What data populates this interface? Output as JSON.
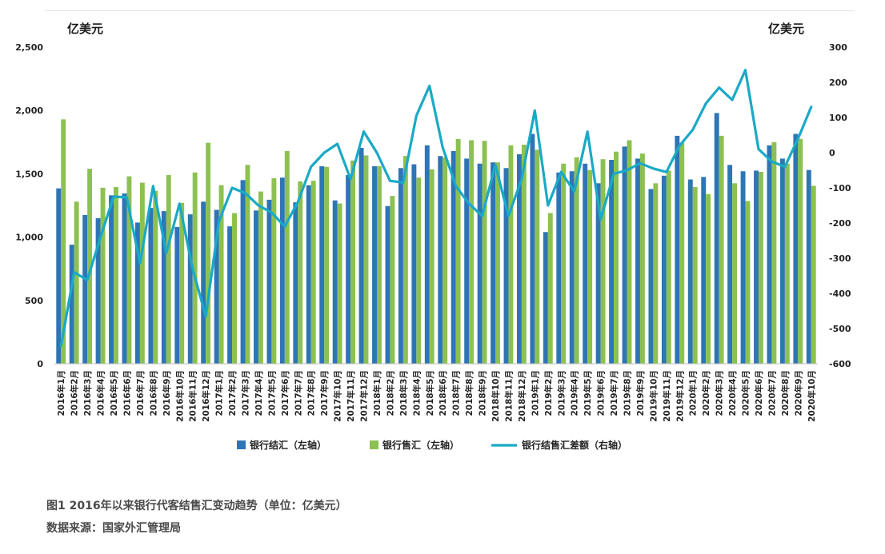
{
  "caption": {
    "title": "图1 2016年以来银行代客结售汇变动趋势（单位：亿美元）",
    "source": "数据来源：国家外汇管理局"
  },
  "chart_data": {
    "type": "bar",
    "title": "",
    "left_unit": "亿美元",
    "right_unit": "亿美元",
    "colors": {
      "settlement": "#2e75b6",
      "sale": "#8cc152",
      "balance": "#1aa9c6"
    },
    "y_left": {
      "min": 0,
      "max": 2500,
      "ticks": [
        0,
        500,
        1000,
        1500,
        2000,
        2500
      ],
      "tick_labels": [
        "0",
        "500",
        "1,000",
        "1,500",
        "2,000",
        "2,500"
      ]
    },
    "y_right": {
      "min": -600,
      "max": 300,
      "ticks": [
        -600,
        -500,
        -400,
        -300,
        -200,
        -100,
        0,
        100,
        200,
        300
      ],
      "tick_labels": [
        "-600",
        "-500",
        "-400",
        "-300",
        "-200",
        "-100",
        "0",
        "100",
        "200",
        "300"
      ]
    },
    "categories": [
      "2016年1月",
      "2016年2月",
      "2016年3月",
      "2016年4月",
      "2016年5月",
      "2016年6月",
      "2016年7月",
      "2016年8月",
      "2016年9月",
      "2016年10月",
      "2016年11月",
      "2016年12月",
      "2017年1月",
      "2017年2月",
      "2017年3月",
      "2017年4月",
      "2017年5月",
      "2017年6月",
      "2017年7月",
      "2017年8月",
      "2017年9月",
      "2017年10月",
      "2017年11月",
      "2017年12月",
      "2018年1月",
      "2018年2月",
      "2018年3月",
      "2018年4月",
      "2018年5月",
      "2018年6月",
      "2018年7月",
      "2018年8月",
      "2018年9月",
      "2018年10月",
      "2018年11月",
      "2018年12月",
      "2019年1月",
      "2019年2月",
      "2019年3月",
      "2019年4月",
      "2019年5月",
      "2019年6月",
      "2019年7月",
      "2019年8月",
      "2019年9月",
      "2019年10月",
      "2019年11月",
      "2019年12月",
      "2020年1月",
      "2020年2月",
      "2020年3月",
      "2020年4月",
      "2020年5月",
      "2020年6月",
      "2020年7月",
      "2020年8月",
      "2020年9月",
      "2020年10月"
    ],
    "series": [
      {
        "name": "银行结汇（左轴）",
        "kind": "bar",
        "axis": "left",
        "values": [
          1385,
          940,
          1175,
          1150,
          1330,
          1345,
          1115,
          1230,
          1205,
          1080,
          1180,
          1280,
          1215,
          1085,
          1450,
          1210,
          1295,
          1470,
          1275,
          1410,
          1560,
          1290,
          1490,
          1705,
          1560,
          1245,
          1545,
          1575,
          1725,
          1640,
          1680,
          1620,
          1580,
          1590,
          1545,
          1655,
          1815,
          1040,
          1510,
          1520,
          1580,
          1425,
          1610,
          1715,
          1620,
          1380,
          1485,
          1800,
          1455,
          1475,
          1980,
          1570,
          1520,
          1525,
          1725,
          1620,
          1815,
          1530
        ]
      },
      {
        "name": "银行售汇（左轴）",
        "kind": "bar",
        "axis": "left",
        "values": [
          1930,
          1280,
          1540,
          1390,
          1395,
          1480,
          1430,
          1365,
          1490,
          1270,
          1510,
          1745,
          1410,
          1190,
          1570,
          1360,
          1465,
          1680,
          1440,
          1445,
          1555,
          1265,
          1605,
          1645,
          1560,
          1325,
          1640,
          1470,
          1535,
          1630,
          1775,
          1765,
          1760,
          1590,
          1725,
          1730,
          1690,
          1190,
          1580,
          1630,
          1530,
          1615,
          1675,
          1765,
          1660,
          1425,
          1525,
          1745,
          1395,
          1340,
          1800,
          1425,
          1285,
          1515,
          1750,
          1580,
          1775,
          1405
        ]
      },
      {
        "name": "银行结售汇差额（右轴）",
        "kind": "line",
        "axis": "right",
        "values": [
          -550,
          -340,
          -362,
          -240,
          -125,
          -127,
          -315,
          -95,
          -285,
          -145,
          -330,
          -465,
          -195,
          -100,
          -115,
          -150,
          -170,
          -210,
          -140,
          -40,
          0,
          25,
          -75,
          60,
          0,
          -80,
          -85,
          105,
          190,
          15,
          -95,
          -145,
          -180,
          -35,
          -180,
          -75,
          120,
          -150,
          -55,
          -110,
          60,
          -190,
          -60,
          -50,
          -30,
          -45,
          -55,
          20,
          65,
          140,
          185,
          150,
          235,
          10,
          -25,
          -40,
          40,
          130
        ]
      }
    ],
    "grid": false,
    "legend": "bottom"
  }
}
